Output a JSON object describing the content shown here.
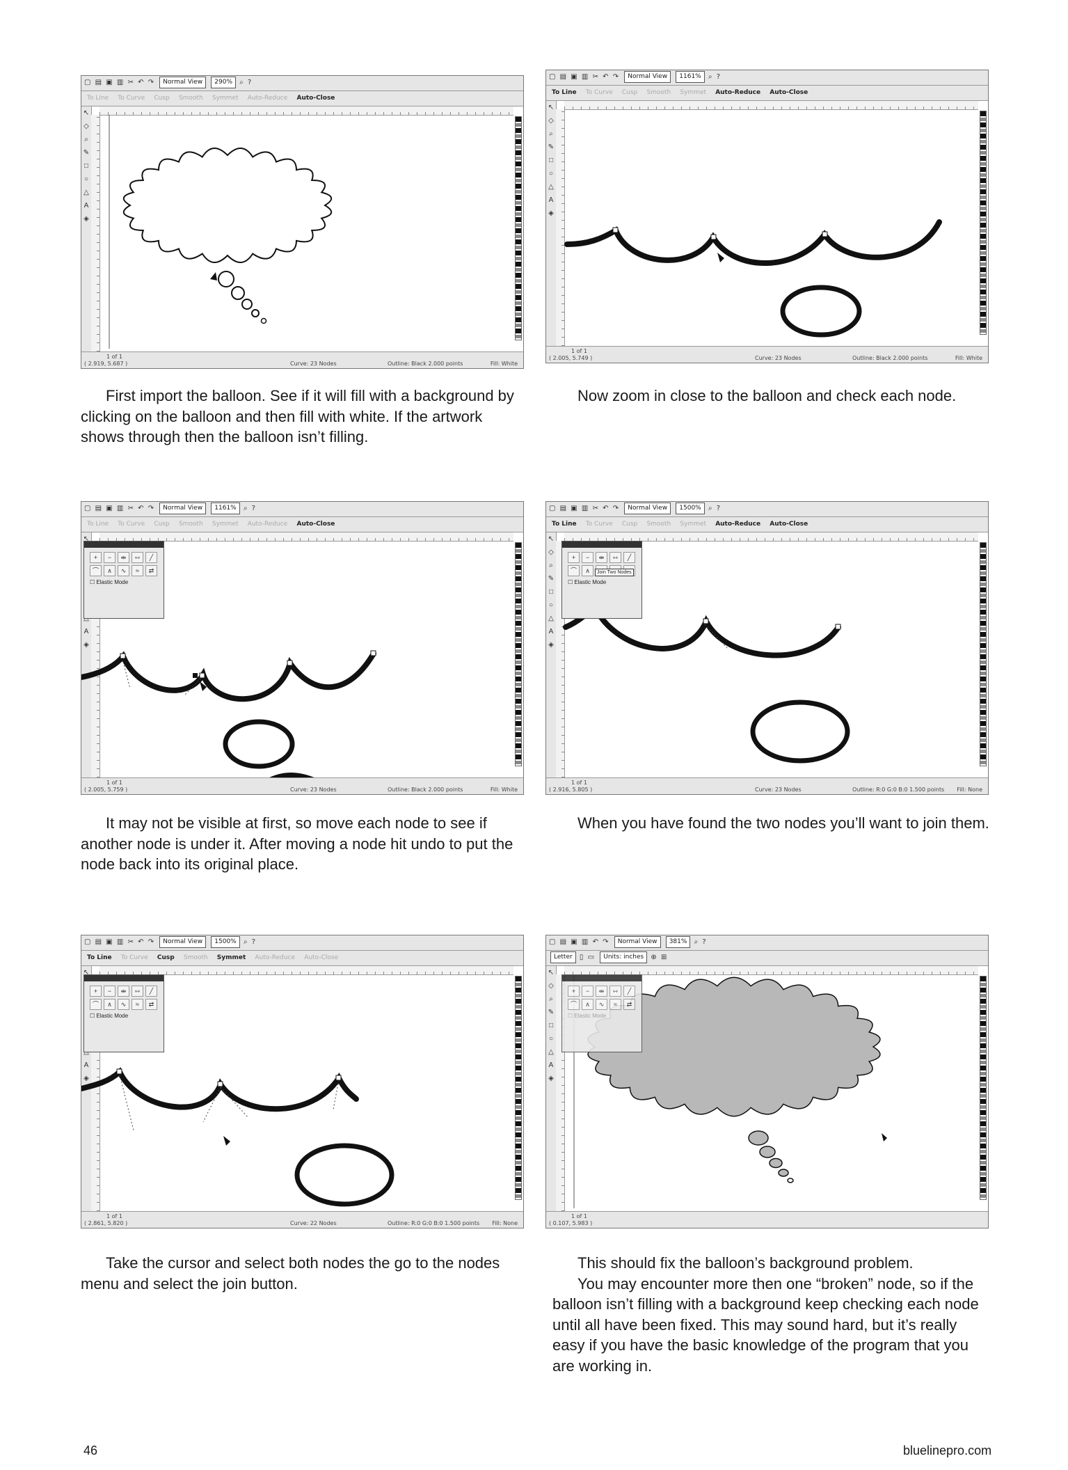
{
  "toolbar": {
    "view_mode": "Normal View",
    "tools": [
      "To Line",
      "To Curve",
      "Cusp",
      "Smooth",
      "Symmet",
      "Auto-Reduce",
      "Auto-Close"
    ]
  },
  "panels": [
    {
      "zoom": "290%",
      "status_coords": "( 2.919, 5.687 )",
      "status_nodes": "Curve: 23 Nodes",
      "status_outline": "Outline: Black  2.000 points",
      "status_fill": "Fill: White",
      "page_indicator": "1 of 1",
      "caption": "First import the balloon.  See if it will fill with a background by clicking on the balloon and then fill with white. If the artwork shows through then the balloon isn’t filling."
    },
    {
      "zoom": "1161%",
      "status_coords": "( 2.005, 5.749 )",
      "status_nodes": "Curve: 23 Nodes",
      "status_outline": "Outline: Black  2.000 points",
      "status_fill": "Fill: White",
      "page_indicator": "1 of 1",
      "caption": "Now zoom in close to the balloon and check each node."
    },
    {
      "zoom": "1161%",
      "status_coords": "( 2.005, 5.759 )",
      "status_nodes": "Curve: 23 Nodes",
      "status_outline": "Outline: Black  2.000 points",
      "status_fill": "Fill: White",
      "page_indicator": "1 of 1",
      "elastic_mode": "Elastic Mode",
      "caption": "It may not be visible at first, so move each node to see if another node is under it. After moving a node hit undo to put the node back into its original place."
    },
    {
      "zoom": "1500%",
      "status_coords": "( 2.916, 5.805 )",
      "status_nodes": "Curve: 23 Nodes",
      "status_outline": "Outline: R:0 G:0 B:0  1.500 points",
      "status_fill": "Fill: None",
      "page_indicator": "1 of 1",
      "elastic_mode": "Elastic Mode",
      "tooltip": "Join Two Nodes",
      "caption": "When you have found the two nodes you’ll want to join them."
    },
    {
      "zoom": "1500%",
      "status_coords": "( 2.861, 5.820 )",
      "status_nodes": "Curve: 22 Nodes",
      "status_outline": "Outline: R:0 G:0 B:0  1.500 points",
      "status_fill": "Fill: None",
      "page_indicator": "1 of 1",
      "elastic_mode": "Elastic Mode",
      "caption": "Take the cursor and select both nodes the go to the nodes menu and select the join button."
    },
    {
      "zoom": "381%",
      "page_size": "Letter",
      "units": "Units: inches",
      "status_coords": "( 0.107, 5.983 )",
      "page_indicator": "1 of 1",
      "elastic_mode": "Elastic Mode",
      "caption_p1": "This should fix the balloon’s background problem.",
      "caption_p2": "You may encounter more then one “broken” node, so if the balloon isn’t filling with a background keep checking each node until all have been fixed. This may sound hard, but it’s really easy if you have the basic knowledge of the program that you are working in."
    }
  ],
  "footer": {
    "page_number": "46",
    "website": "bluelinepro.com"
  },
  "icons": {
    "toolbox": [
      "pointer-icon",
      "shape-icon",
      "zoom-icon",
      "freehand-icon",
      "rectangle-icon",
      "ellipse-icon",
      "polygon-icon",
      "text-icon",
      "fill-icon",
      "outline-icon"
    ]
  },
  "colors": {
    "balloon_fill": "#b8b8b8",
    "ui_gray": "#e6e6e6",
    "stroke": "#111111"
  }
}
